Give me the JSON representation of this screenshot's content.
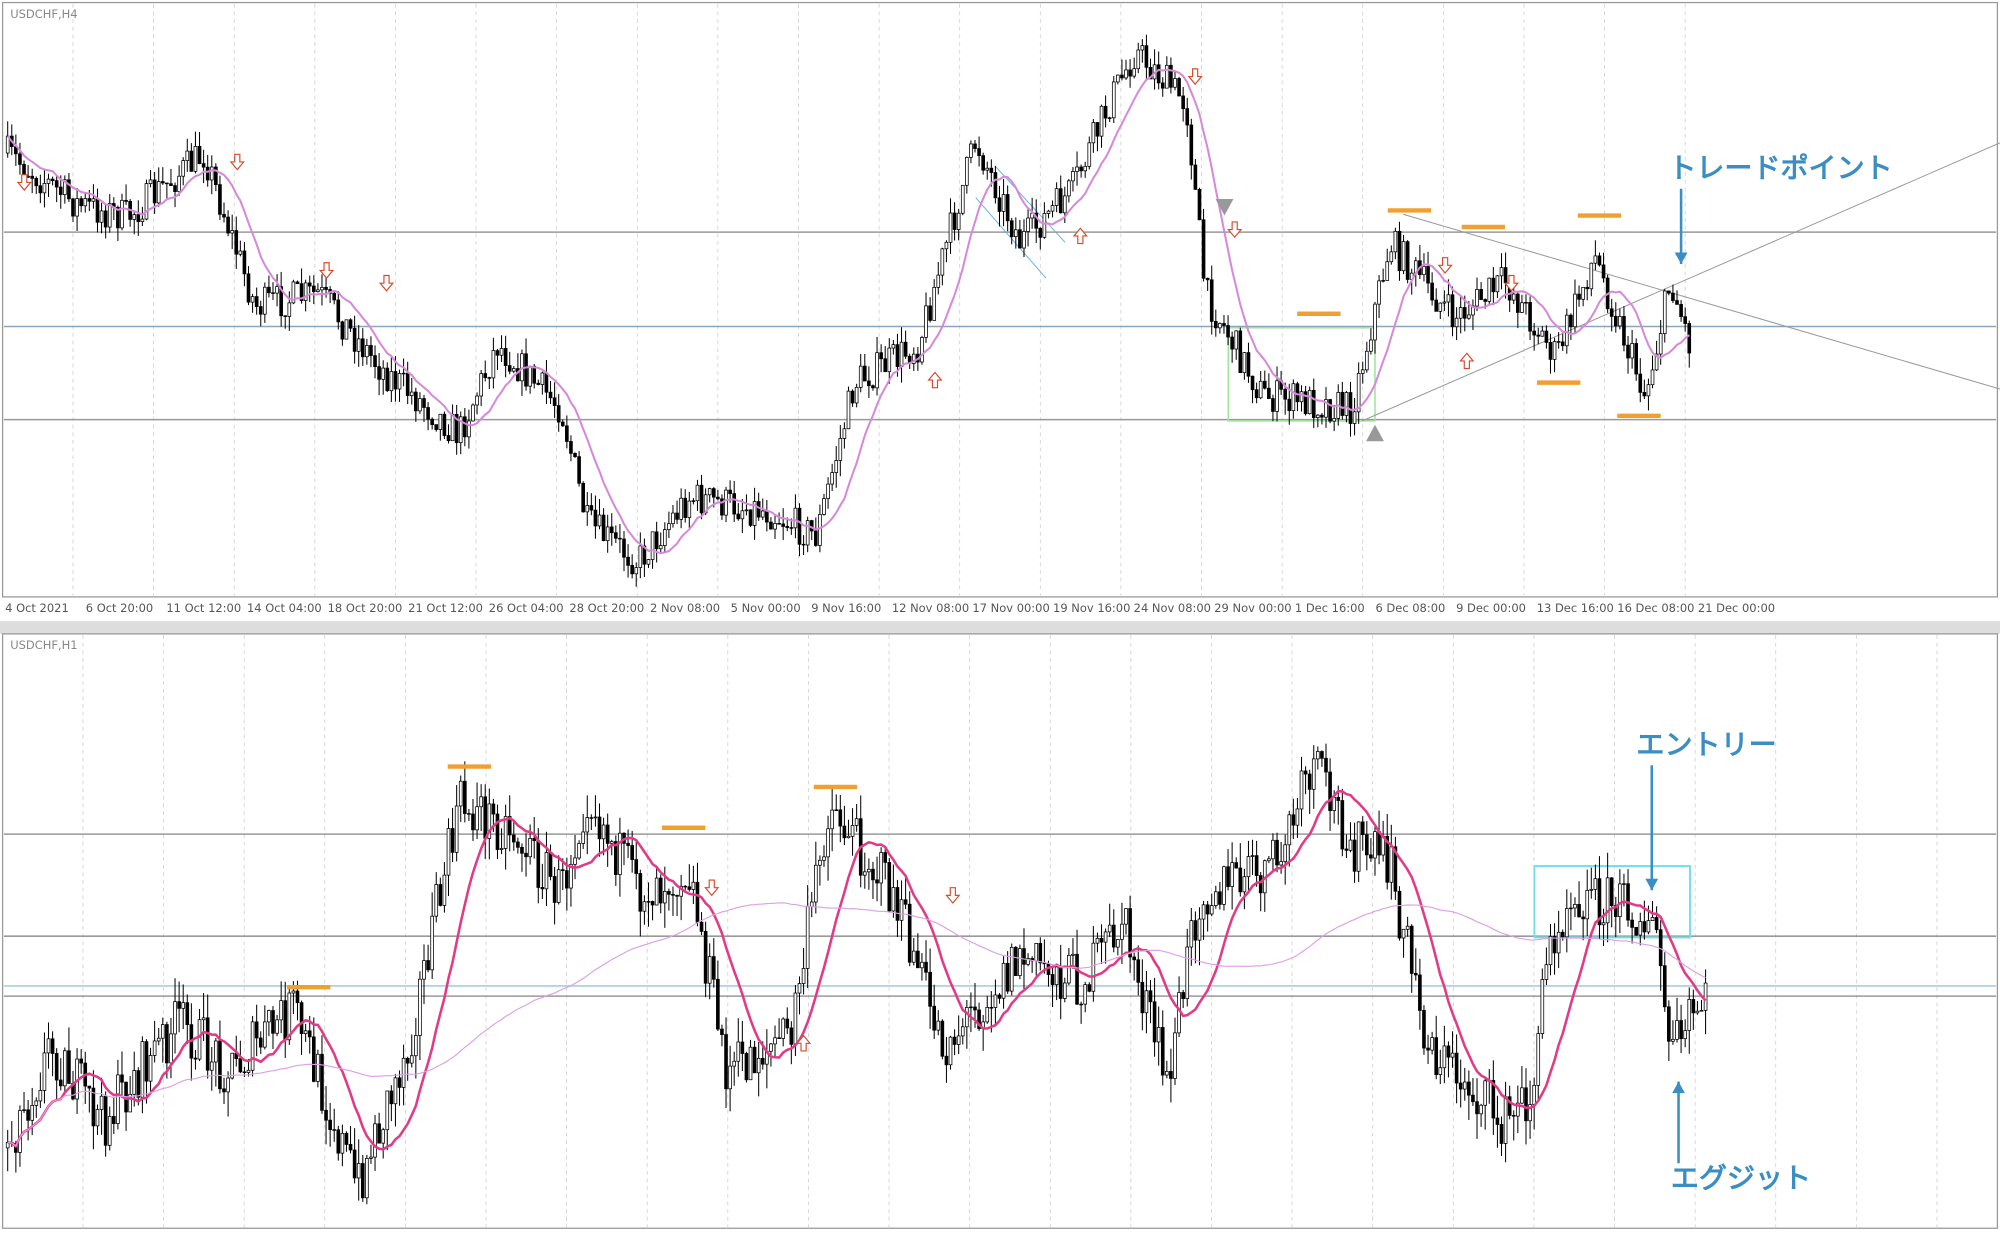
{
  "panels": [
    {
      "symbol": "USDCHF,H4",
      "time_labels": [
        "4 Oct 2021",
        "6 Oct 20:00",
        "11 Oct 12:00",
        "14 Oct 04:00",
        "18 Oct 20:00",
        "21 Oct 12:00",
        "26 Oct 04:00",
        "28 Oct 20:00",
        "2 Nov 08:00",
        "5 Nov 00:00",
        "9 Nov 16:00",
        "12 Nov 08:00",
        "17 Nov 00:00",
        "19 Nov 16:00",
        "24 Nov 08:00",
        "29 Nov 00:00",
        "1 Dec 16:00",
        "6 Dec 08:00",
        "9 Dec 00:00",
        "13 Dec 16:00",
        "16 Dec 08:00",
        "21 Dec 00:00"
      ],
      "annotations": [
        "トレードポイント"
      ]
    },
    {
      "symbol": "USDCHF,H1",
      "annotations": [
        "エントリー",
        "エグジット"
      ]
    }
  ]
}
